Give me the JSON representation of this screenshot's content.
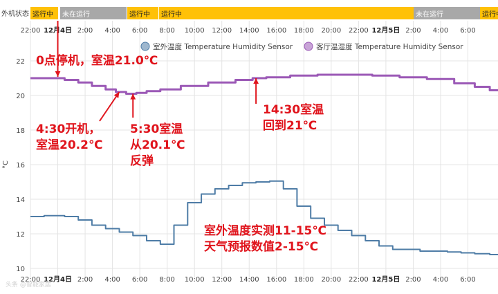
{
  "status": {
    "label": "外机状态",
    "segments": [
      {
        "text": "运行中",
        "state": "running"
      },
      {
        "text": "未在运行",
        "state": "stopped"
      },
      {
        "text": "运行中",
        "state": "running"
      },
      {
        "text": "运行中",
        "state": "running"
      },
      {
        "text": "未在运行",
        "state": "stopped"
      },
      {
        "text": "运行中",
        "state": "running"
      }
    ],
    "colors": {
      "running": "#ffc107",
      "stopped": "#a8a8a8"
    }
  },
  "time_ticks": [
    "22:00",
    "12月4日",
    "2:00",
    "4:00",
    "6:00",
    "8:00",
    "10:00",
    "12:00",
    "14:00",
    "16:00",
    "18:00",
    "20:00",
    "22:00",
    "12月5日",
    "2:00",
    "4:00",
    "6:00"
  ],
  "watermark": "头条 @智能家居",
  "chart_data": {
    "type": "line",
    "ylabel": "°C",
    "ylim": [
      10,
      22
    ],
    "yticks": [
      10,
      12,
      14,
      16,
      18,
      20,
      22
    ],
    "x_unit": "hours since 12月4日 0:00",
    "xlim": [
      -2,
      32.2
    ],
    "grid": true,
    "legend_position": "top",
    "series": [
      {
        "name": "室外温度 Temperature Humidity Sensor",
        "color": "#4e7ca6",
        "points": [
          [
            -2,
            13.0
          ],
          [
            0,
            13.05
          ],
          [
            1,
            13.0
          ],
          [
            2,
            12.8
          ],
          [
            3,
            12.5
          ],
          [
            4,
            12.3
          ],
          [
            5,
            12.1
          ],
          [
            6,
            11.9
          ],
          [
            7,
            11.6
          ],
          [
            8,
            11.4
          ],
          [
            9,
            12.5
          ],
          [
            10,
            13.8
          ],
          [
            11,
            14.3
          ],
          [
            12,
            14.6
          ],
          [
            13,
            14.8
          ],
          [
            14,
            14.95
          ],
          [
            15,
            15.0
          ],
          [
            16,
            15.05
          ],
          [
            17,
            14.6
          ],
          [
            18,
            13.6
          ],
          [
            19,
            12.9
          ],
          [
            20,
            12.5
          ],
          [
            21,
            12.2
          ],
          [
            22,
            11.9
          ],
          [
            23,
            11.6
          ],
          [
            24,
            11.3
          ],
          [
            25,
            11.1
          ],
          [
            26,
            11.1
          ],
          [
            27,
            11.0
          ],
          [
            28,
            11.0
          ],
          [
            29,
            10.95
          ],
          [
            30,
            10.9
          ],
          [
            31,
            10.85
          ],
          [
            32.2,
            10.8
          ]
        ]
      },
      {
        "name": "客厅温湿度 Temperature Humidity Sensor",
        "color": "#9b59b6",
        "points": [
          [
            -2,
            21.0
          ],
          [
            0,
            21.0
          ],
          [
            1,
            20.9
          ],
          [
            2,
            20.75
          ],
          [
            3,
            20.55
          ],
          [
            4,
            20.35
          ],
          [
            4.5,
            20.2
          ],
          [
            5.5,
            20.1
          ],
          [
            6,
            20.15
          ],
          [
            7,
            20.25
          ],
          [
            8,
            20.35
          ],
          [
            10,
            20.55
          ],
          [
            12,
            20.75
          ],
          [
            14,
            20.9
          ],
          [
            14.5,
            21.0
          ],
          [
            16,
            21.05
          ],
          [
            18,
            21.15
          ],
          [
            20,
            21.2
          ],
          [
            22,
            21.2
          ],
          [
            24,
            21.15
          ],
          [
            26,
            21.05
          ],
          [
            28,
            20.95
          ],
          [
            30,
            20.7
          ],
          [
            31,
            20.5
          ],
          [
            32.2,
            20.3
          ]
        ]
      }
    ],
    "annotations": [
      {
        "lines": [
          "0点停机，室温21.0℃"
        ]
      },
      {
        "lines": [
          "4:30开机，",
          "室温20.2℃"
        ]
      },
      {
        "lines": [
          "5:30室温",
          "从20.1℃",
          "反弹"
        ]
      },
      {
        "lines": [
          "14:30室温",
          "回到21℃"
        ]
      },
      {
        "lines": [
          "室外温度实测11-15℃",
          "天气预报数值2-15℃"
        ]
      }
    ]
  }
}
